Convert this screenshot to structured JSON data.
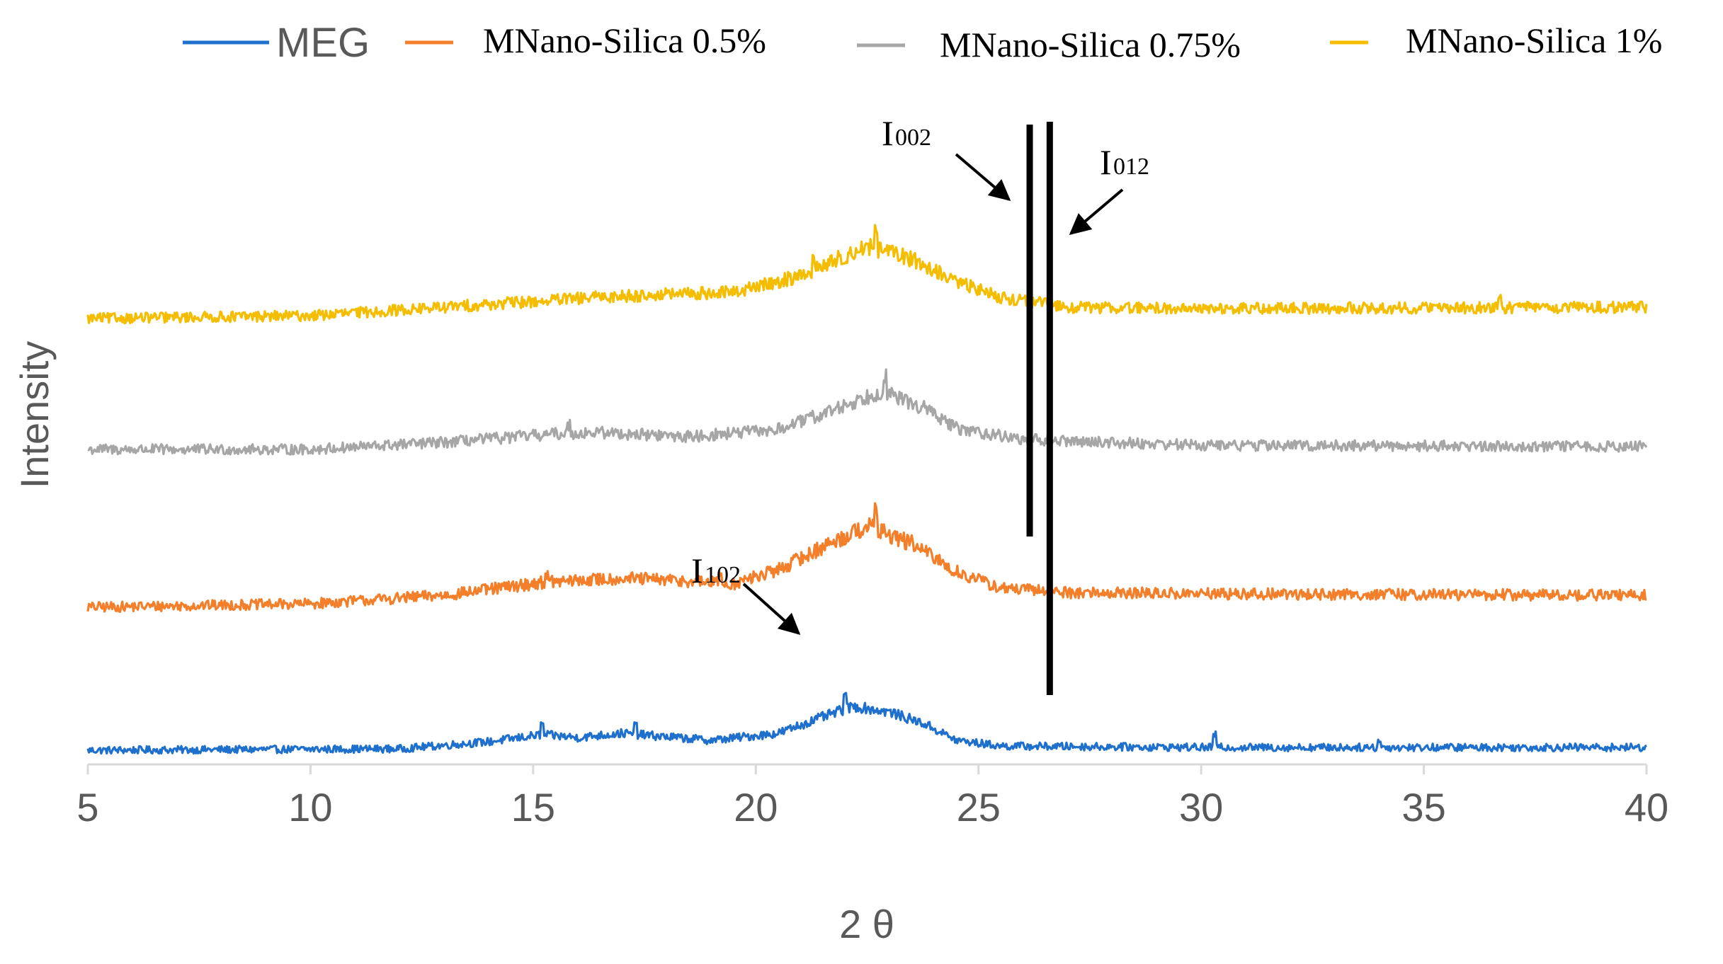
{
  "chart_data": {
    "type": "line",
    "title": "",
    "xlabel": "2 θ",
    "ylabel": "Intensity",
    "xlim": [
      5,
      40
    ],
    "x_ticks": [
      5,
      10,
      15,
      20,
      25,
      30,
      35,
      40
    ],
    "y_ticks_shown": false,
    "grid": false,
    "legend_position": "top",
    "series": [
      {
        "name": "MEG",
        "color": "#1f6fcc",
        "offset": 0,
        "noise": 5,
        "baseline": [
          [
            5,
            8
          ],
          [
            12,
            10
          ],
          [
            14,
            20
          ],
          [
            15.2,
            30
          ],
          [
            16,
            26
          ],
          [
            17,
            32
          ],
          [
            17.8,
            28
          ],
          [
            19,
            22
          ],
          [
            20.5,
            32
          ],
          [
            21.5,
            55
          ],
          [
            22.2,
            70
          ],
          [
            23,
            62
          ],
          [
            23.8,
            45
          ],
          [
            24.5,
            22
          ],
          [
            25.5,
            14
          ],
          [
            30,
            12
          ],
          [
            40,
            12
          ]
        ],
        "spikes": [
          [
            15.2,
            14
          ],
          [
            17.3,
            12
          ],
          [
            22,
            22
          ],
          [
            30.3,
            18
          ],
          [
            34,
            9
          ]
        ]
      },
      {
        "name": "MNano-Silica 0.5%",
        "color": "#f47f2a",
        "offset": 205,
        "noise": 7,
        "baseline": [
          [
            5,
            5
          ],
          [
            10,
            10
          ],
          [
            13,
            22
          ],
          [
            15.2,
            40
          ],
          [
            17,
            46
          ],
          [
            18.5,
            42
          ],
          [
            19.5,
            38
          ],
          [
            20.5,
            58
          ],
          [
            21.5,
            90
          ],
          [
            22.5,
            120
          ],
          [
            23.5,
            95
          ],
          [
            24.5,
            55
          ],
          [
            25.5,
            32
          ],
          [
            27,
            26
          ],
          [
            30,
            24
          ],
          [
            40,
            22
          ]
        ],
        "spikes": [
          [
            22.7,
            28
          ],
          [
            15.3,
            12
          ],
          [
            19.2,
            14
          ]
        ]
      },
      {
        "name": "MNano-Silica 0.75%",
        "color": "#a6a6a6",
        "offset": 425,
        "noise": 7,
        "baseline": [
          [
            5,
            8
          ],
          [
            10,
            8
          ],
          [
            13,
            18
          ],
          [
            15.5,
            30
          ],
          [
            16.5,
            32
          ],
          [
            18.5,
            26
          ],
          [
            20.5,
            36
          ],
          [
            21.5,
            58
          ],
          [
            22.8,
            90
          ],
          [
            23.8,
            66
          ],
          [
            24.5,
            38
          ],
          [
            26,
            22
          ],
          [
            30,
            14
          ],
          [
            40,
            12
          ]
        ],
        "spikes": [
          [
            22.9,
            24
          ],
          [
            15.8,
            12
          ]
        ]
      },
      {
        "name": "MNano-Silica 1%",
        "color": "#f5bd00",
        "offset": 610,
        "noise": 7,
        "baseline": [
          [
            5,
            8
          ],
          [
            10,
            12
          ],
          [
            14,
            28
          ],
          [
            17,
            40
          ],
          [
            19.5,
            45
          ],
          [
            21,
            68
          ],
          [
            22.5,
            110
          ],
          [
            23.5,
            92
          ],
          [
            24.5,
            60
          ],
          [
            25.5,
            38
          ],
          [
            27,
            24
          ],
          [
            30,
            22
          ],
          [
            40,
            24
          ]
        ],
        "spikes": [
          [
            22.7,
            30
          ],
          [
            21.3,
            14
          ],
          [
            36.7,
            14
          ]
        ]
      }
    ],
    "reference_lines": [
      {
        "label": "I002",
        "x": 26.15
      },
      {
        "label": "I012",
        "x": 26.6
      }
    ],
    "annotations": [
      {
        "letter": "I",
        "sub": "002",
        "label": "I002",
        "target": "left reference line"
      },
      {
        "letter": "I",
        "sub": "012",
        "label": "I012",
        "target": "right reference line"
      },
      {
        "letter": "I",
        "sub": "102",
        "label": "I102",
        "target": "MEG peak"
      }
    ]
  }
}
